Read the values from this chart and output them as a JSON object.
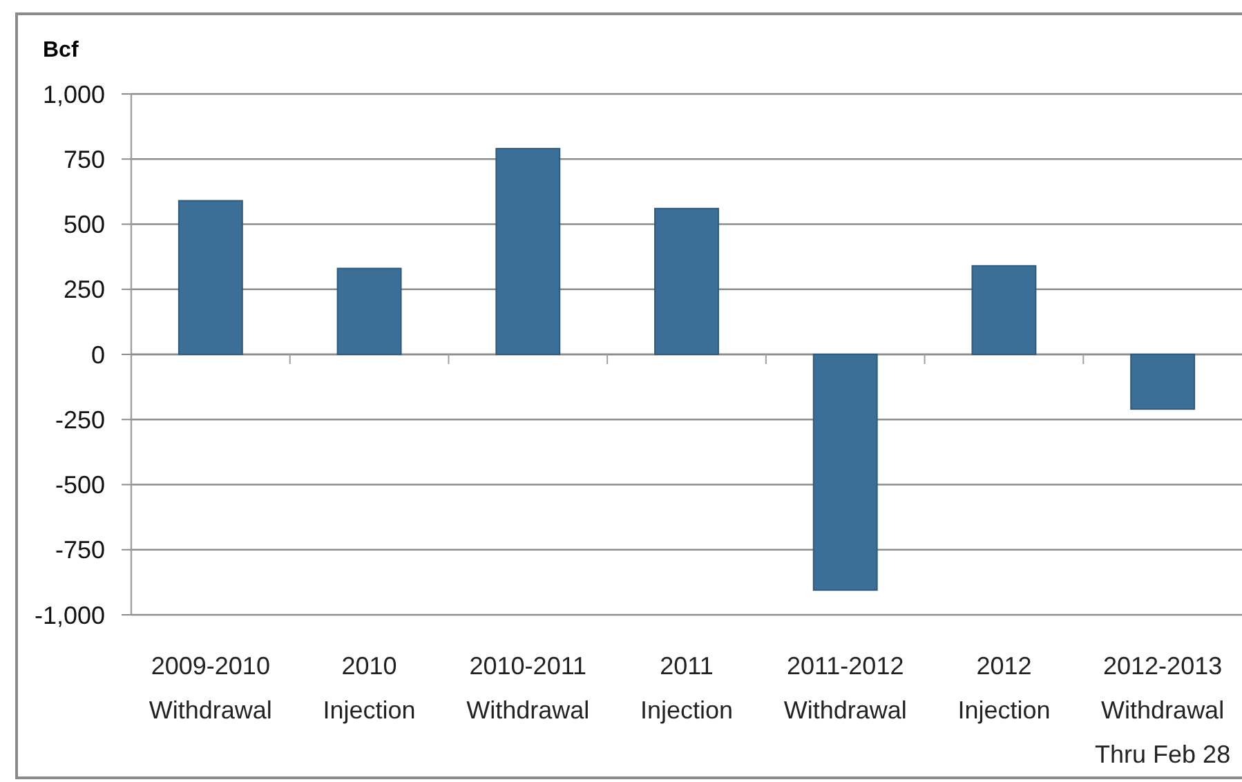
{
  "chart_data": {
    "type": "bar",
    "ylabel": "Bcf",
    "categories": [
      "2009-2010\nWithdrawal",
      "2010\nInjection",
      "2010-2011\nWithdrawal",
      "2011\nInjection",
      "2011-2012\nWithdrawal",
      "2012\nInjection",
      "2012-2013\nWithdrawal\nThru Feb 28"
    ],
    "values": [
      590,
      330,
      790,
      560,
      -905,
      340,
      -210
    ],
    "color": "#3b6f98",
    "ylim": [
      -1000,
      1000
    ],
    "yticks": [
      {
        "value": -1000,
        "label": "-1,000"
      },
      -750,
      -500,
      -250,
      0,
      250,
      500,
      750,
      {
        "value": 1000,
        "label": "1,000"
      }
    ],
    "grid": "y"
  }
}
